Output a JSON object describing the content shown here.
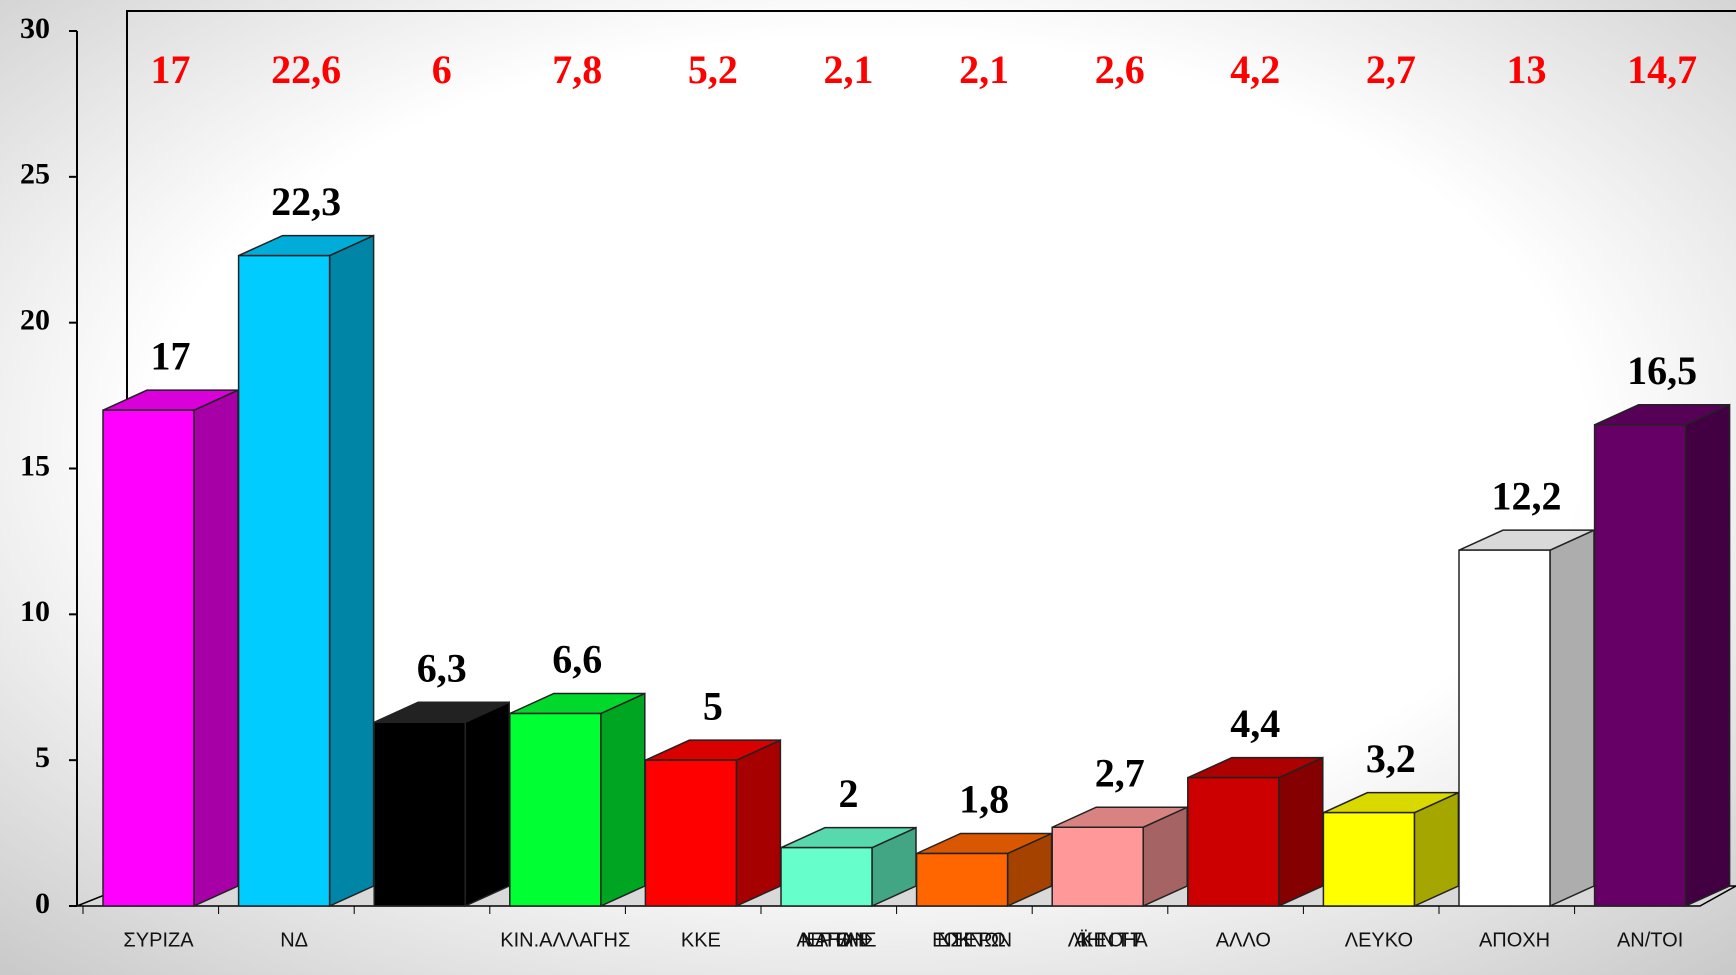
{
  "chart_data": {
    "type": "bar",
    "categories": [
      "ΣΥΡΙΖΑ",
      "ΝΔ",
      null,
      "ΚΙΝ.ΑΛΛΑΓΗΣ",
      "ΚΚΕ",
      "ΑΝΕΞΑΡΤΗΤΟΙ ΕΛΛΗΝΕΣ",
      "ΕΝΩΣΗ ΚΕΝΤΡΩΩΝ",
      "ΛΑΪΚΗ ΕΝΟΤΗΤΑ",
      "ΑΛΛΟ",
      "ΛΕΥΚΟ",
      "ΑΠΟΧΗ",
      "ΑΝ/ΤΟΙ"
    ],
    "series": [
      {
        "values": [
          17,
          22.3,
          6.3,
          6.6,
          5,
          2,
          1.8,
          2.7,
          4.4,
          3.2,
          12.2,
          16.5
        ],
        "value_labels": [
          "17",
          "22,3",
          "6,3",
          "6,6",
          "5",
          "2",
          "1,8",
          "2,7",
          "4,4",
          "3,2",
          "12,2",
          "16,5"
        ],
        "colors": [
          "#ff00ff",
          "#00ccff",
          "#000000",
          "#00ff33",
          "#ff0000",
          "#66ffcc",
          "#ff6600",
          "#ff9999",
          "#cc0000",
          "#ffff00",
          "#ffffff",
          "#660066"
        ],
        "label_color": "#000000",
        "marker": "bar"
      },
      {
        "values": [
          17,
          22.6,
          6,
          7.8,
          5.2,
          2.1,
          2.1,
          2.6,
          4.2,
          2.7,
          13,
          14.7
        ],
        "value_labels": [
          "17",
          "22,6",
          "6",
          "7,8",
          "5,2",
          "2,1",
          "2,1",
          "2,6",
          "4,2",
          "2,7",
          "13",
          "14,7"
        ],
        "color": "#ff0000",
        "marker": "label"
      }
    ],
    "ylim": [
      0,
      30
    ],
    "yticks": [
      0,
      5,
      10,
      15,
      20,
      25,
      30
    ],
    "grid": false
  }
}
